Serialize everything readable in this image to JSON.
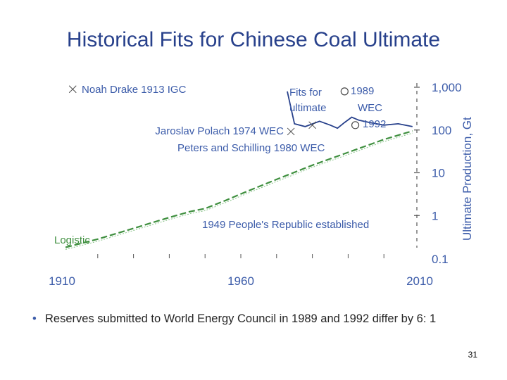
{
  "slide": {
    "title": "Historical Fits for Chinese Coal Ultimate",
    "bullet": "Reserves submitted to World Energy Council in 1989 and 1992 differ by 6: 1",
    "page_number": "31"
  },
  "colors": {
    "title": "#27408b",
    "text_blue": "#3b5ba9",
    "green": "#3f8f3f",
    "fit_line": "#27408b"
  },
  "chart_data": {
    "type": "line",
    "title": "",
    "xlabel": "",
    "ylabel": "Ultimate Production, Gt",
    "xlim": [
      1910,
      2010
    ],
    "x_ticks": [
      "1910",
      "1960",
      "2010"
    ],
    "y_scale": "log",
    "ylim": [
      0.1,
      1000
    ],
    "y_ticks": [
      "0.1",
      "1",
      "10",
      "100",
      "1,000"
    ],
    "series": [
      {
        "name": "Logistic",
        "style": "dashed",
        "x": [
          1911,
          1920,
          1930,
          1940,
          1946,
          1950,
          1956,
          1960,
          1970,
          1980,
          1990,
          2000,
          2008
        ],
        "y": [
          0.18,
          0.28,
          0.5,
          0.9,
          1.25,
          1.45,
          2.3,
          3.2,
          7,
          15,
          30,
          60,
          95
        ]
      },
      {
        "name": "Fits for ultimate",
        "style": "solid",
        "x": [
          1973,
          1975,
          1978,
          1982,
          1985,
          1987,
          1989,
          1991,
          1993,
          1996,
          2000,
          2004,
          2008
        ],
        "y": [
          800,
          140,
          120,
          160,
          130,
          110,
          150,
          200,
          170,
          150,
          130,
          140,
          120
        ]
      }
    ],
    "points": [
      {
        "label": "Noah Drake 1913 IGC",
        "marker": "x",
        "x": 1913,
        "y": 900
      },
      {
        "label": "Jaroslav Polach 1974 WEC",
        "marker": "x",
        "x": 1974,
        "y": 92
      },
      {
        "label": "Peters and Schilling 1980 WEC",
        "marker": "x",
        "x": 1980,
        "y": 130
      },
      {
        "label": "1989 WEC",
        "marker": "o",
        "x": 1989,
        "y": 800
      },
      {
        "label": "1992",
        "marker": "o",
        "x": 1992,
        "y": 130
      }
    ],
    "annotations": [
      {
        "text": "Fits for"
      },
      {
        "text": "ultimate"
      },
      {
        "text": "1949 People's Republic established",
        "x": 1949
      }
    ],
    "legend": "none",
    "grid": false
  }
}
